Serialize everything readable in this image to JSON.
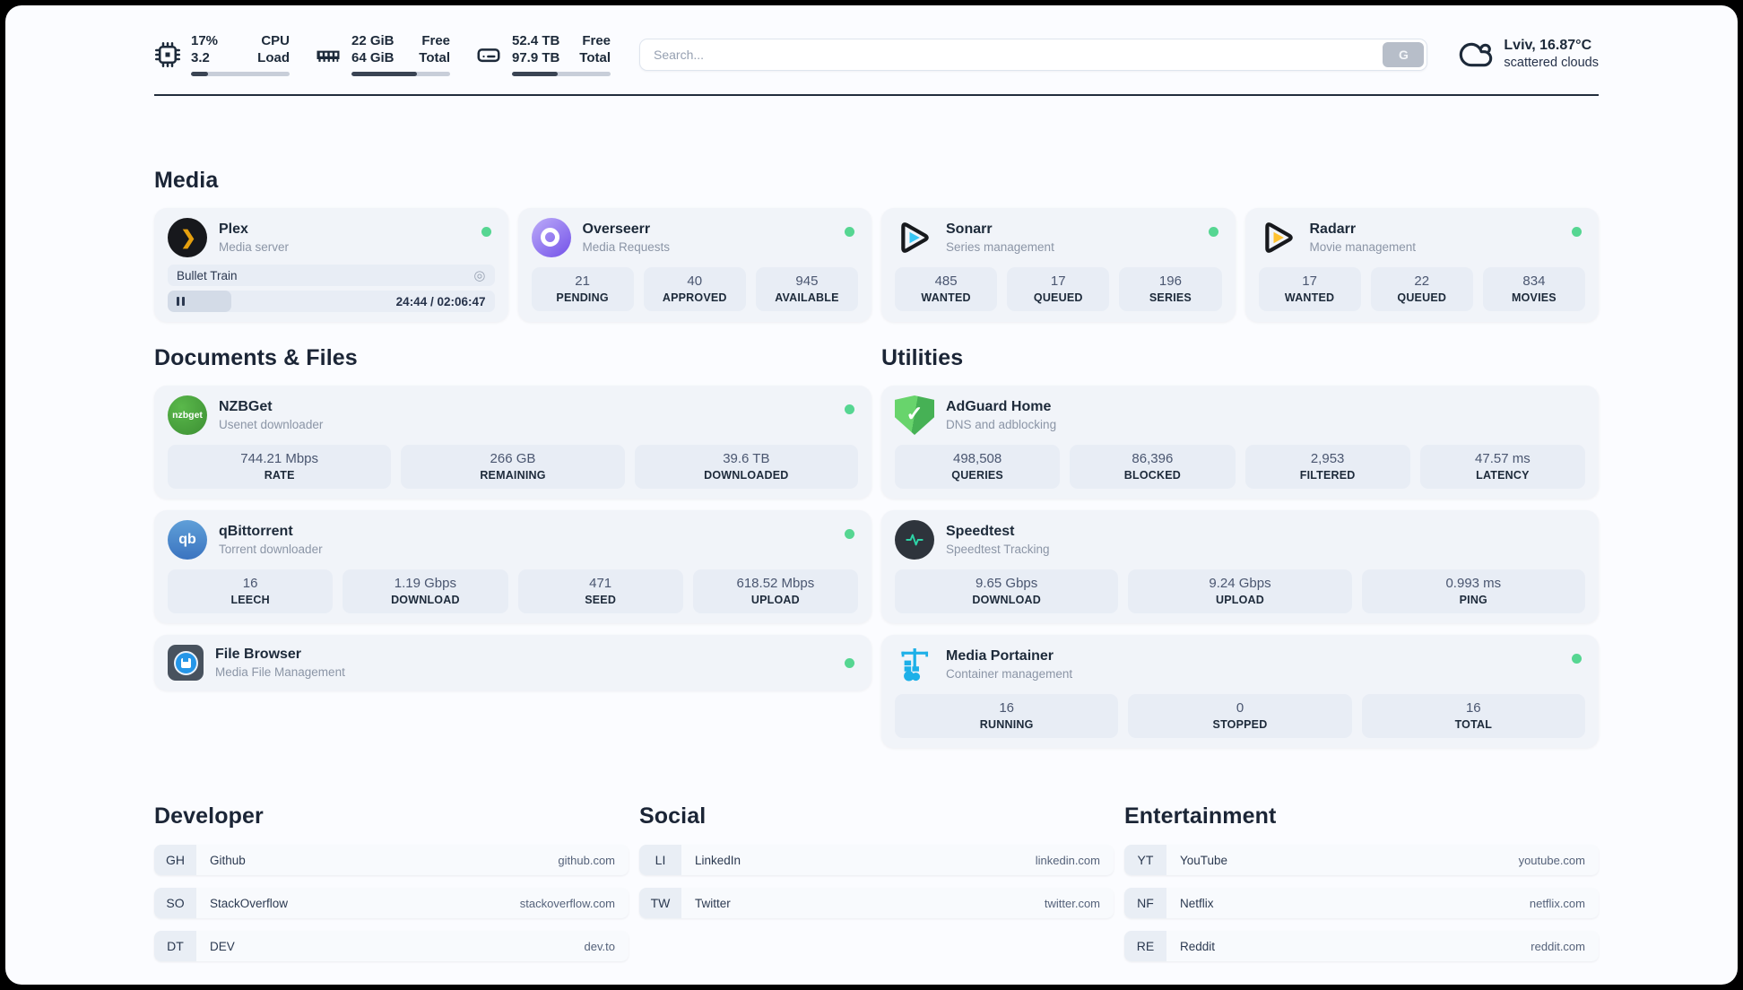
{
  "colors": {
    "status_online": "#56d692",
    "plex_accent": "#e6a00e",
    "sonarr_accent": "#38c6f4",
    "radarr_accent": "#ffc230",
    "nzbget_accent": "#3e9c35",
    "qbittorrent_accent": "#4787c7",
    "adguard_accent": "#59c962",
    "speedtest_accent": "#2dd4a7",
    "portainer_accent": "#1db0e8",
    "filebrowser_accent": "#2596e8"
  },
  "topbar": {
    "cpu": {
      "values": [
        "17%",
        "3.2"
      ],
      "labels": [
        "CPU",
        "Load"
      ],
      "percent": 17
    },
    "memory": {
      "values": [
        "22 GiB",
        "64 GiB"
      ],
      "labels": [
        "Free",
        "Total"
      ],
      "percent": 66
    },
    "disk": {
      "values": [
        "52.4 TB",
        "97.9 TB"
      ],
      "labels": [
        "Free",
        "Total"
      ],
      "percent": 46
    },
    "search": {
      "placeholder": "Search...",
      "button_label": "G"
    },
    "weather": {
      "location": "Lviv, 16.87°C",
      "condition": "scattered clouds"
    }
  },
  "sections": {
    "media": "Media",
    "documents": "Documents & Files",
    "utilities": "Utilities"
  },
  "services": {
    "plex": {
      "name": "Plex",
      "subtitle": "Media server",
      "icon_glyph": "❯",
      "overlay_icon": "◎",
      "now_playing": "Bullet Train",
      "time": "24:44 / 02:06:47",
      "progress_percent": 19.5
    },
    "overseerr": {
      "name": "Overseerr",
      "subtitle": "Media Requests",
      "stats": [
        {
          "value": "21",
          "label": "PENDING"
        },
        {
          "value": "40",
          "label": "APPROVED"
        },
        {
          "value": "945",
          "label": "AVAILABLE"
        }
      ]
    },
    "sonarr": {
      "name": "Sonarr",
      "subtitle": "Series management",
      "stats": [
        {
          "value": "485",
          "label": "WANTED"
        },
        {
          "value": "17",
          "label": "QUEUED"
        },
        {
          "value": "196",
          "label": "SERIES"
        }
      ]
    },
    "radarr": {
      "name": "Radarr",
      "subtitle": "Movie management",
      "stats": [
        {
          "value": "17",
          "label": "WANTED"
        },
        {
          "value": "22",
          "label": "QUEUED"
        },
        {
          "value": "834",
          "label": "MOVIES"
        }
      ]
    },
    "nzbget": {
      "name": "NZBGet",
      "subtitle": "Usenet downloader",
      "icon_text": "nzbget",
      "stats": [
        {
          "value": "744.21 Mbps",
          "label": "RATE"
        },
        {
          "value": "266 GB",
          "label": "REMAINING"
        },
        {
          "value": "39.6 TB",
          "label": "DOWNLOADED"
        }
      ]
    },
    "qbittorrent": {
      "name": "qBittorrent",
      "subtitle": "Torrent downloader",
      "icon_text": "qb",
      "stats": [
        {
          "value": "16",
          "label": "LEECH"
        },
        {
          "value": "1.19 Gbps",
          "label": "DOWNLOAD"
        },
        {
          "value": "471",
          "label": "SEED"
        },
        {
          "value": "618.52 Mbps",
          "label": "UPLOAD"
        }
      ]
    },
    "filebrowser": {
      "name": "File Browser",
      "subtitle": "Media File Management"
    },
    "adguard": {
      "name": "AdGuard Home",
      "subtitle": "DNS and adblocking",
      "icon_glyph": "✓",
      "stats": [
        {
          "value": "498,508",
          "label": "QUERIES"
        },
        {
          "value": "86,396",
          "label": "BLOCKED"
        },
        {
          "value": "2,953",
          "label": "FILTERED"
        },
        {
          "value": "47.57 ms",
          "label": "LATENCY"
        }
      ]
    },
    "speedtest": {
      "name": "Speedtest",
      "subtitle": "Speedtest Tracking",
      "stats": [
        {
          "value": "9.65 Gbps",
          "label": "DOWNLOAD"
        },
        {
          "value": "9.24 Gbps",
          "label": "UPLOAD"
        },
        {
          "value": "0.993 ms",
          "label": "PING"
        }
      ]
    },
    "portainer": {
      "name": "Media Portainer",
      "subtitle": "Container management",
      "stats": [
        {
          "value": "16",
          "label": "RUNNING"
        },
        {
          "value": "0",
          "label": "STOPPED"
        },
        {
          "value": "16",
          "label": "TOTAL"
        }
      ]
    }
  },
  "bookmarks": {
    "developer": {
      "title": "Developer",
      "items": [
        {
          "abbr": "GH",
          "name": "Github",
          "domain": "github.com"
        },
        {
          "abbr": "SO",
          "name": "StackOverflow",
          "domain": "stackoverflow.com"
        },
        {
          "abbr": "DT",
          "name": "DEV",
          "domain": "dev.to"
        }
      ]
    },
    "social": {
      "title": "Social",
      "items": [
        {
          "abbr": "LI",
          "name": "LinkedIn",
          "domain": "linkedin.com"
        },
        {
          "abbr": "TW",
          "name": "Twitter",
          "domain": "twitter.com"
        }
      ]
    },
    "entertainment": {
      "title": "Entertainment",
      "items": [
        {
          "abbr": "YT",
          "name": "YouTube",
          "domain": "youtube.com"
        },
        {
          "abbr": "NF",
          "name": "Netflix",
          "domain": "netflix.com"
        },
        {
          "abbr": "RE",
          "name": "Reddit",
          "domain": "reddit.com"
        }
      ]
    }
  }
}
